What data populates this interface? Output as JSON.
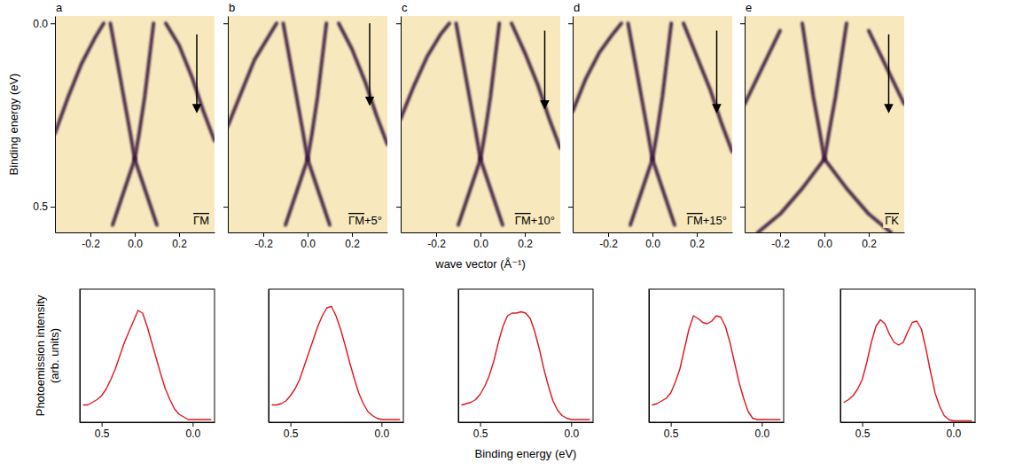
{
  "chart_data": [
    {
      "type": "line",
      "panel_label": "a",
      "title": "ΓM",
      "y_label": "Binding energy (eV)",
      "color": "#3a1a3f",
      "xlim": [
        -0.36,
        0.36
      ],
      "ylim": [
        -0.02,
        0.57
      ],
      "xticks": [
        -0.2,
        {
          "value": 0,
          "label": "0.0"
        },
        0.2
      ],
      "yticks": [
        {
          "value": 0,
          "label": "0.0"
        },
        0.5
      ],
      "arrow": {
        "x": 0.28,
        "y": [
          0.03,
          0.24
        ]
      },
      "series": [
        {
          "x": [
            -0.11,
            -0.08,
            -0.05,
            -0.02,
            0.0
          ],
          "values": [
            0.0,
            0.1,
            0.2,
            0.3,
            0.37
          ]
        },
        {
          "x": [
            0.0,
            0.02,
            0.045,
            0.065,
            0.085
          ],
          "values": [
            0.37,
            0.3,
            0.2,
            0.1,
            0.0
          ]
        },
        {
          "x": [
            0.0,
            -0.05,
            -0.1
          ],
          "values": [
            0.37,
            0.46,
            0.55
          ]
        },
        {
          "x": [
            0.0,
            0.05,
            0.1
          ],
          "values": [
            0.37,
            0.46,
            0.55
          ]
        },
        {
          "x": [
            -0.36,
            -0.3,
            -0.24,
            -0.18,
            -0.14
          ],
          "values": [
            0.3,
            0.2,
            0.11,
            0.04,
            0.0
          ]
        },
        {
          "x": [
            0.14,
            0.2,
            0.26,
            0.31,
            0.36
          ],
          "values": [
            0.0,
            0.06,
            0.15,
            0.24,
            0.32
          ]
        }
      ]
    },
    {
      "type": "line",
      "panel_label": "b",
      "title": "ΓM+5°",
      "color": "#3a1a3f",
      "tick_labels": "x",
      "xlim": [
        -0.36,
        0.36
      ],
      "ylim": [
        -0.02,
        0.57
      ],
      "xticks": [
        -0.2,
        {
          "value": 0,
          "label": "0.0"
        },
        0.2
      ],
      "yticks": [
        0,
        0.5
      ],
      "arrow": {
        "x": 0.28,
        "y": [
          0.0,
          0.22
        ]
      },
      "series": [
        {
          "x": [
            -0.11,
            -0.08,
            -0.05,
            -0.02,
            0.0
          ],
          "values": [
            0.0,
            0.1,
            0.2,
            0.3,
            0.37
          ]
        },
        {
          "x": [
            0.0,
            0.02,
            0.045,
            0.065,
            0.085
          ],
          "values": [
            0.37,
            0.3,
            0.2,
            0.1,
            0.0
          ]
        },
        {
          "x": [
            0.0,
            -0.05,
            -0.1
          ],
          "values": [
            0.37,
            0.46,
            0.55
          ]
        },
        {
          "x": [
            0.0,
            0.05,
            0.1
          ],
          "values": [
            0.37,
            0.46,
            0.55
          ]
        },
        {
          "x": [
            -0.36,
            -0.3,
            -0.24,
            -0.18,
            -0.14
          ],
          "values": [
            0.28,
            0.19,
            0.1,
            0.04,
            0.0
          ]
        },
        {
          "x": [
            0.14,
            0.2,
            0.26,
            0.31,
            0.36
          ],
          "values": [
            0.0,
            0.07,
            0.16,
            0.25,
            0.33
          ]
        }
      ]
    },
    {
      "type": "line",
      "panel_label": "c",
      "title": "ΓM+10°",
      "x_label": "wave vector (Å⁻¹)",
      "color": "#3a1a3f",
      "tick_labels": "x",
      "xlim": [
        -0.36,
        0.36
      ],
      "ylim": [
        -0.02,
        0.57
      ],
      "xticks": [
        -0.2,
        {
          "value": 0,
          "label": "0.0"
        },
        0.2
      ],
      "yticks": [
        0,
        0.5
      ],
      "arrow": {
        "x": 0.29,
        "y": [
          0.02,
          0.23
        ]
      },
      "series": [
        {
          "x": [
            -0.11,
            -0.08,
            -0.05,
            -0.02,
            0.0
          ],
          "values": [
            0.0,
            0.1,
            0.2,
            0.3,
            0.37
          ]
        },
        {
          "x": [
            0.0,
            0.02,
            0.045,
            0.065,
            0.085
          ],
          "values": [
            0.37,
            0.3,
            0.2,
            0.1,
            0.0
          ]
        },
        {
          "x": [
            0.0,
            -0.05,
            -0.1
          ],
          "values": [
            0.37,
            0.46,
            0.55
          ]
        },
        {
          "x": [
            0.0,
            0.05,
            0.1
          ],
          "values": [
            0.37,
            0.46,
            0.55
          ]
        },
        {
          "x": [
            -0.36,
            -0.3,
            -0.24,
            -0.18,
            -0.14
          ],
          "values": [
            0.26,
            0.17,
            0.09,
            0.03,
            0.0
          ]
        },
        {
          "x": [
            0.14,
            0.2,
            0.26,
            0.31,
            0.36
          ],
          "values": [
            0.0,
            0.08,
            0.17,
            0.26,
            0.34
          ]
        }
      ]
    },
    {
      "type": "line",
      "panel_label": "d",
      "title": "ΓM+15°",
      "color": "#3a1a3f",
      "tick_labels": "x",
      "xlim": [
        -0.36,
        0.36
      ],
      "ylim": [
        -0.02,
        0.57
      ],
      "xticks": [
        -0.2,
        {
          "value": 0,
          "label": "0.0"
        },
        0.2
      ],
      "yticks": [
        0,
        0.5
      ],
      "arrow": {
        "x": 0.29,
        "y": [
          0.02,
          0.24
        ]
      },
      "series": [
        {
          "x": [
            -0.11,
            -0.08,
            -0.05,
            -0.02,
            0.0
          ],
          "values": [
            0.0,
            0.1,
            0.2,
            0.3,
            0.37
          ]
        },
        {
          "x": [
            0.0,
            0.02,
            0.045,
            0.065,
            0.085
          ],
          "values": [
            0.37,
            0.3,
            0.2,
            0.1,
            0.0
          ]
        },
        {
          "x": [
            0.0,
            -0.05,
            -0.1
          ],
          "values": [
            0.37,
            0.46,
            0.55
          ]
        },
        {
          "x": [
            0.0,
            0.05,
            0.1
          ],
          "values": [
            0.37,
            0.46,
            0.55
          ]
        },
        {
          "x": [
            -0.36,
            -0.3,
            -0.24,
            -0.18,
            -0.14
          ],
          "values": [
            0.24,
            0.15,
            0.08,
            0.03,
            0.0
          ]
        },
        {
          "x": [
            0.14,
            0.2,
            0.26,
            0.31,
            0.36
          ],
          "values": [
            0.0,
            0.09,
            0.18,
            0.27,
            0.35
          ]
        }
      ]
    },
    {
      "type": "line",
      "panel_label": "e",
      "title": "ΓK",
      "color": "#3a1a3f",
      "tick_labels": "x",
      "xlim": [
        -0.36,
        0.36
      ],
      "ylim": [
        -0.02,
        0.57
      ],
      "xticks": [
        -0.2,
        {
          "value": 0,
          "label": "0.0"
        },
        0.2
      ],
      "yticks": [
        0,
        0.5
      ],
      "arrow": {
        "x": 0.29,
        "y": [
          0.03,
          0.24
        ]
      },
      "series": [
        {
          "x": [
            -0.1,
            -0.075,
            -0.05,
            -0.02,
            0.0
          ],
          "values": [
            0.0,
            0.1,
            0.2,
            0.3,
            0.37
          ]
        },
        {
          "x": [
            0.0,
            0.02,
            0.05,
            0.075,
            0.1
          ],
          "values": [
            0.37,
            0.3,
            0.2,
            0.1,
            0.0
          ]
        },
        {
          "x": [
            0.0,
            -0.1,
            -0.2,
            -0.3
          ],
          "values": [
            0.37,
            0.45,
            0.52,
            0.57
          ]
        },
        {
          "x": [
            0.0,
            0.1,
            0.2,
            0.3
          ],
          "values": [
            0.37,
            0.45,
            0.52,
            0.57
          ]
        },
        {
          "x": [
            -0.36,
            -0.28,
            -0.2
          ],
          "values": [
            0.22,
            0.12,
            0.02
          ]
        },
        {
          "x": [
            0.2,
            0.28,
            0.36
          ],
          "values": [
            0.02,
            0.12,
            0.22
          ]
        }
      ]
    },
    {
      "type": "line",
      "y_label": [
        "Photoemission intensity",
        "(arb. units)"
      ],
      "color": "#e3141b",
      "tick_labels": "x",
      "xlim": [
        0.62,
        -0.12
      ],
      "ylim": [
        0,
        1
      ],
      "xticks": [
        0.5,
        {
          "value": 0,
          "label": "0.0"
        }
      ],
      "x": [
        0.6,
        0.575,
        0.55,
        0.525,
        0.5,
        0.475,
        0.45,
        0.425,
        0.4,
        0.375,
        0.35,
        0.325,
        0.3,
        0.275,
        0.25,
        0.225,
        0.2,
        0.175,
        0.15,
        0.125,
        0.1,
        0.075,
        0.05,
        0.025,
        0,
        -0.025,
        -0.05,
        -0.075,
        -0.1
      ],
      "values": [
        0.13,
        0.13,
        0.15,
        0.17,
        0.2,
        0.25,
        0.32,
        0.4,
        0.5,
        0.6,
        0.68,
        0.76,
        0.84,
        0.82,
        0.72,
        0.6,
        0.48,
        0.36,
        0.25,
        0.17,
        0.1,
        0.06,
        0.04,
        0.02,
        0.02,
        0.02,
        0.02,
        0.02,
        0.02
      ]
    },
    {
      "type": "line",
      "color": "#e3141b",
      "tick_labels": "x",
      "xlim": [
        0.62,
        -0.12
      ],
      "ylim": [
        0,
        1
      ],
      "xticks": [
        0.5,
        {
          "value": 0,
          "label": "0.0"
        }
      ],
      "x": [
        0.6,
        0.575,
        0.55,
        0.525,
        0.5,
        0.475,
        0.45,
        0.425,
        0.4,
        0.375,
        0.35,
        0.325,
        0.3,
        0.275,
        0.25,
        0.225,
        0.2,
        0.175,
        0.15,
        0.125,
        0.1,
        0.075,
        0.05,
        0.025,
        0,
        -0.025,
        -0.05,
        -0.075,
        -0.1
      ],
      "values": [
        0.13,
        0.13,
        0.14,
        0.16,
        0.2,
        0.25,
        0.32,
        0.42,
        0.52,
        0.62,
        0.72,
        0.8,
        0.86,
        0.87,
        0.8,
        0.7,
        0.58,
        0.45,
        0.33,
        0.22,
        0.14,
        0.08,
        0.05,
        0.03,
        0.02,
        0.02,
        0.02,
        0.02,
        0.02
      ]
    },
    {
      "type": "line",
      "x_label": "Binding energy (eV)",
      "color": "#e3141b",
      "tick_labels": "x",
      "xlim": [
        0.62,
        -0.12
      ],
      "ylim": [
        0,
        1
      ],
      "xticks": [
        0.5,
        {
          "value": 0,
          "label": "0.0"
        }
      ],
      "x": [
        0.6,
        0.575,
        0.55,
        0.525,
        0.5,
        0.475,
        0.45,
        0.425,
        0.4,
        0.375,
        0.35,
        0.325,
        0.3,
        0.275,
        0.25,
        0.225,
        0.2,
        0.175,
        0.15,
        0.125,
        0.1,
        0.075,
        0.05,
        0.025,
        0,
        -0.025,
        -0.05,
        -0.075,
        -0.1
      ],
      "values": [
        0.13,
        0.14,
        0.15,
        0.17,
        0.21,
        0.27,
        0.35,
        0.46,
        0.6,
        0.72,
        0.8,
        0.82,
        0.82,
        0.83,
        0.82,
        0.78,
        0.68,
        0.55,
        0.4,
        0.27,
        0.16,
        0.09,
        0.05,
        0.03,
        0.02,
        0.02,
        0.02,
        0.02,
        0.02
      ]
    },
    {
      "type": "line",
      "color": "#e3141b",
      "tick_labels": "x",
      "xlim": [
        0.62,
        -0.12
      ],
      "ylim": [
        0,
        1
      ],
      "xticks": [
        0.5,
        {
          "value": 0,
          "label": "0.0"
        }
      ],
      "x": [
        0.6,
        0.575,
        0.55,
        0.525,
        0.5,
        0.475,
        0.45,
        0.425,
        0.4,
        0.375,
        0.35,
        0.325,
        0.3,
        0.275,
        0.25,
        0.225,
        0.2,
        0.175,
        0.15,
        0.125,
        0.1,
        0.075,
        0.05,
        0.025,
        0,
        -0.025,
        -0.05,
        -0.075,
        -0.1
      ],
      "values": [
        0.13,
        0.14,
        0.16,
        0.18,
        0.22,
        0.3,
        0.4,
        0.55,
        0.7,
        0.8,
        0.78,
        0.75,
        0.74,
        0.76,
        0.8,
        0.79,
        0.72,
        0.6,
        0.45,
        0.3,
        0.18,
        0.08,
        0.03,
        0.02,
        0.02,
        0.02,
        0.02,
        0.02,
        0.02
      ]
    },
    {
      "type": "line",
      "color": "#e3141b",
      "tick_labels": "x",
      "xlim": [
        0.62,
        -0.12
      ],
      "ylim": [
        0,
        1
      ],
      "xticks": [
        0.5,
        {
          "value": 0,
          "label": "0.0"
        }
      ],
      "x": [
        0.6,
        0.575,
        0.55,
        0.525,
        0.5,
        0.475,
        0.45,
        0.425,
        0.4,
        0.375,
        0.35,
        0.325,
        0.3,
        0.275,
        0.25,
        0.225,
        0.2,
        0.175,
        0.15,
        0.125,
        0.1,
        0.075,
        0.05,
        0.025,
        0,
        -0.025,
        -0.05,
        -0.075,
        -0.1
      ],
      "values": [
        0.15,
        0.17,
        0.2,
        0.25,
        0.32,
        0.45,
        0.6,
        0.72,
        0.77,
        0.74,
        0.66,
        0.6,
        0.58,
        0.6,
        0.68,
        0.75,
        0.76,
        0.7,
        0.55,
        0.38,
        0.22,
        0.12,
        0.05,
        0.02,
        0.01,
        0.01,
        0.01,
        0.01,
        0.01
      ]
    }
  ]
}
